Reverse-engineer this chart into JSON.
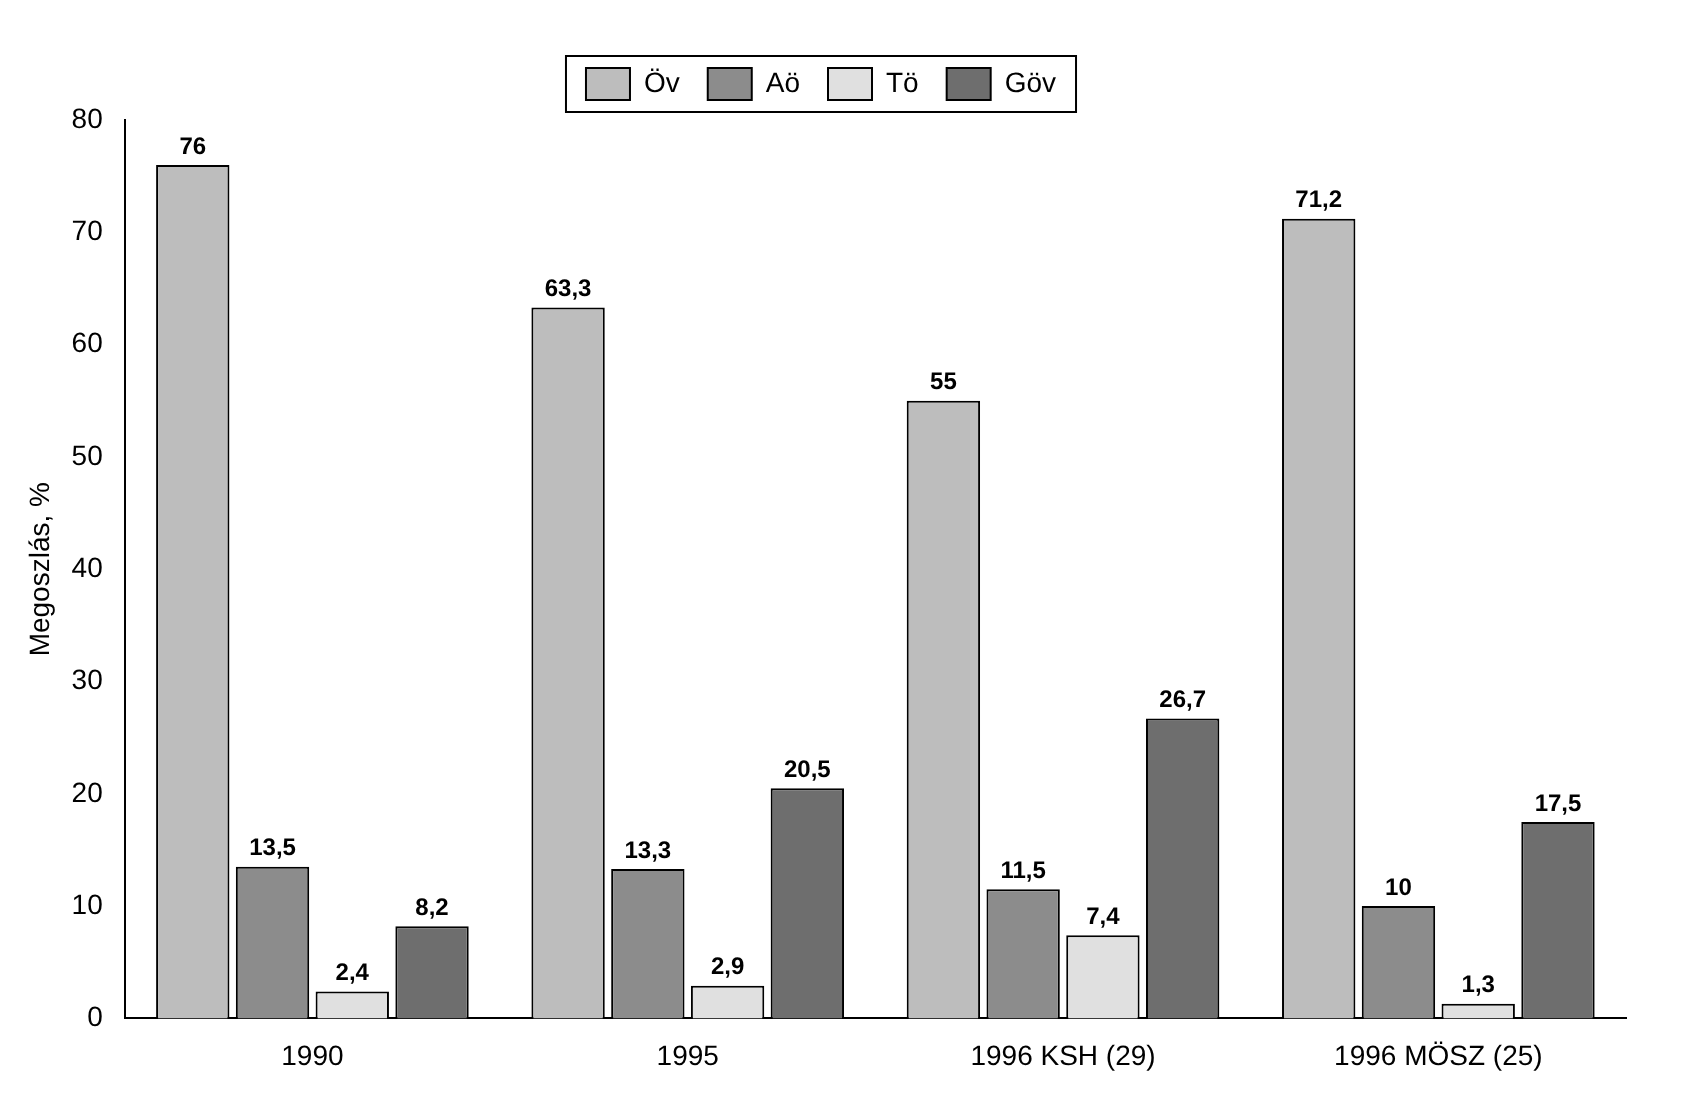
{
  "chart_data": {
    "type": "bar",
    "ylabel": "Megoszlás, %",
    "categories": [
      "1990",
      "1995",
      "1996 KSH (29)",
      "1996 MÖSZ (25)"
    ],
    "series": [
      {
        "name": "Öv",
        "color": "#bdbdbd",
        "values": [
          76,
          63.3,
          55,
          71.2
        ],
        "value_labels": [
          "76",
          "63,3",
          "55",
          "71,2"
        ]
      },
      {
        "name": "Aö",
        "color": "#8c8c8c",
        "values": [
          13.5,
          13.3,
          11.5,
          10
        ],
        "value_labels": [
          "13,5",
          "13,3",
          "11,5",
          "10"
        ]
      },
      {
        "name": "Tö",
        "color": "#e0e0e0",
        "values": [
          2.4,
          2.9,
          7.4,
          1.3
        ],
        "value_labels": [
          "2,4",
          "2,9",
          "7,4",
          "1,3"
        ]
      },
      {
        "name": "Göv",
        "color": "#6e6e6e",
        "values": [
          8.2,
          20.5,
          26.7,
          17.5
        ],
        "value_labels": [
          "8,2",
          "20,5",
          "26,7",
          "17,5"
        ]
      }
    ],
    "ylim": [
      0,
      80
    ],
    "yticks": [
      0,
      10,
      20,
      30,
      40,
      50,
      60,
      70,
      80
    ],
    "grid": false,
    "legend": "top"
  }
}
